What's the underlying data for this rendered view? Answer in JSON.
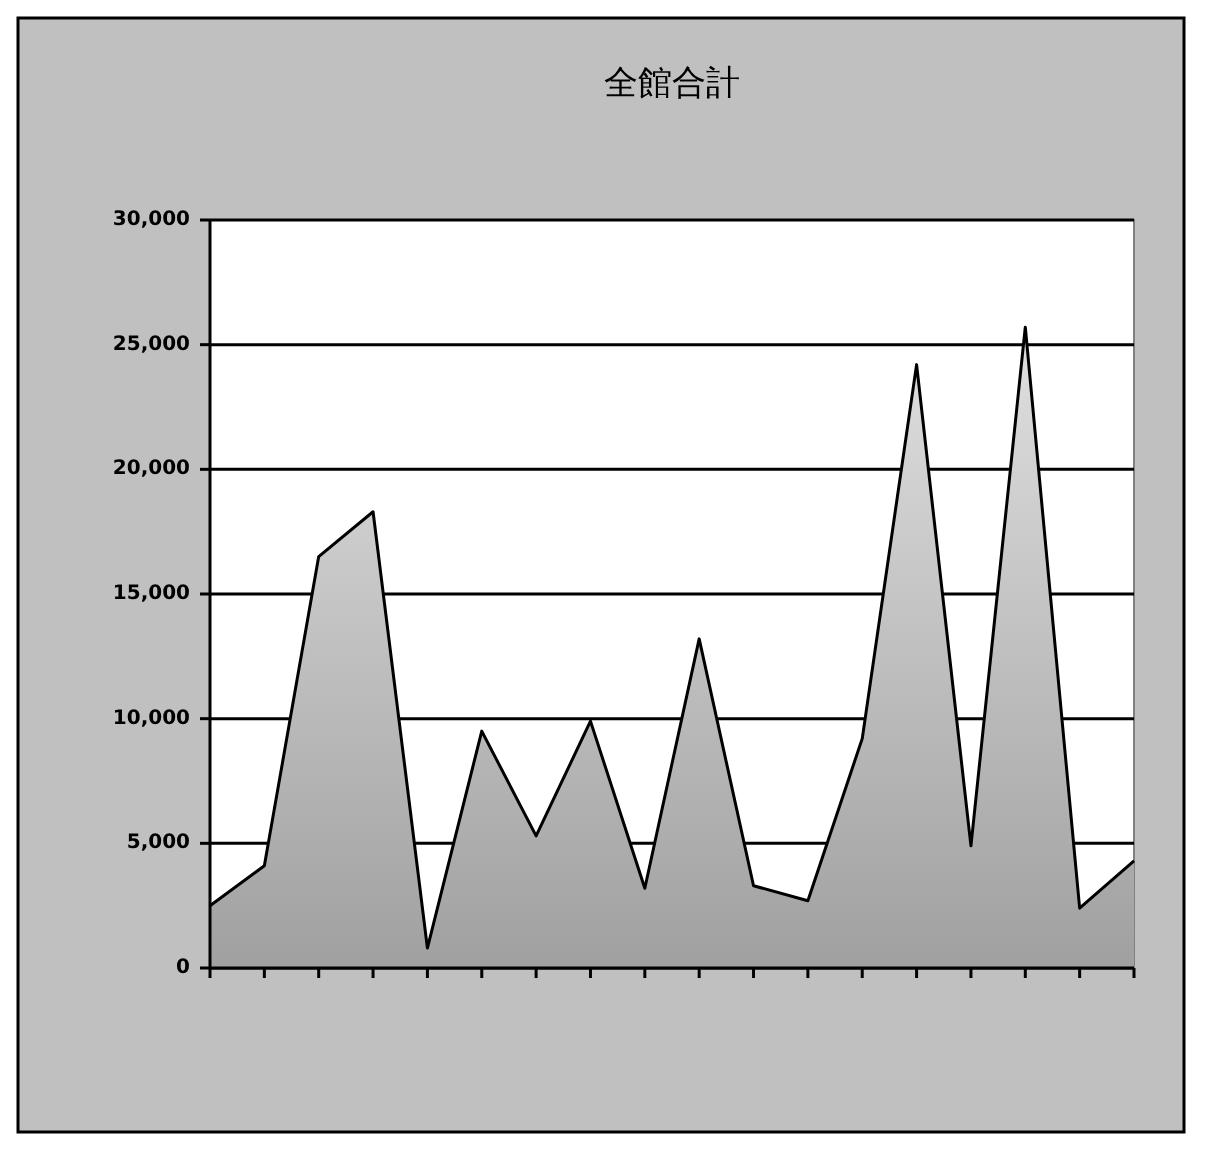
{
  "chart_data": {
    "type": "area",
    "title": "全館合計",
    "categories": [
      null,
      null,
      null,
      null,
      null,
      null,
      null,
      null,
      null,
      null,
      null,
      null,
      null,
      null,
      null,
      null,
      null,
      null
    ],
    "series": [
      {
        "color": "#a0a0a0",
        "values": [
          2500,
          4100,
          16500,
          18300,
          800,
          9500,
          5300,
          9900,
          3200,
          13200,
          3300,
          2700,
          9200,
          24200,
          4900,
          25700,
          2400,
          4300
        ]
      }
    ],
    "ylim": [
      0,
      30000
    ],
    "yticks": [
      {
        "value": 0,
        "label": "0"
      },
      {
        "value": 5000,
        "label": "5,000"
      },
      {
        "value": 10000,
        "label": "10,000"
      },
      {
        "value": 15000,
        "label": "15,000"
      },
      {
        "value": 20000,
        "label": "20,000"
      },
      {
        "value": 25000,
        "label": "25,000"
      },
      {
        "value": 30000,
        "label": "30,000"
      }
    ],
    "grid": "y"
  }
}
